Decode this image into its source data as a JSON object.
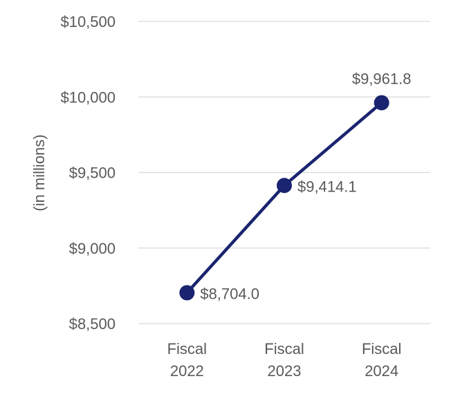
{
  "chart_data": {
    "type": "line",
    "title": "",
    "xlabel": "",
    "ylabel": "(in millions)",
    "categories": [
      [
        "Fiscal",
        "2022"
      ],
      [
        "Fiscal",
        "2023"
      ],
      [
        "Fiscal",
        "2024"
      ]
    ],
    "values": [
      8704.0,
      9414.1,
      9961.8
    ],
    "data_labels": [
      "$8,704.0",
      "$9,414.1",
      "$9,961.8"
    ],
    "data_label_positions": [
      "right",
      "right",
      "above"
    ],
    "ylim": [
      8500,
      10500
    ],
    "ytick_step": 500,
    "ytick_labels": [
      "$8,500",
      "$9,000",
      "$9,500",
      "$10,000",
      "$10,500"
    ],
    "grid": true,
    "legend": false,
    "colors": {
      "line": "#1a2470",
      "marker": "#1a2470",
      "grid": "#d9d9d9",
      "text": "#595959",
      "background": "#ffffff"
    }
  }
}
